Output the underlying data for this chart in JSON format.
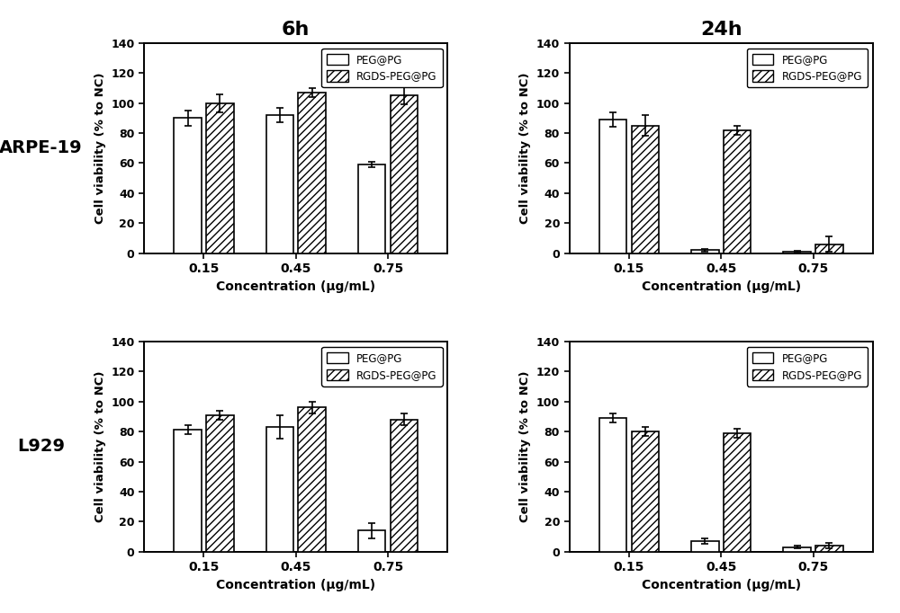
{
  "title_left": "6h",
  "title_right": "24h",
  "row_labels": [
    "ARPE-19",
    "L929"
  ],
  "x_tick_labels": [
    "0.15",
    "0.45",
    "0.75"
  ],
  "xlabel": "Concentration (μg/mL)",
  "ylabel": "Cell viability (% to NC)",
  "ylim": [
    0,
    140
  ],
  "yticks": [
    0,
    20,
    40,
    60,
    80,
    100,
    120,
    140
  ],
  "legend_labels": [
    "PEG@PG",
    "RGDS-PEG@PG"
  ],
  "bar_width": 0.3,
  "bar_gap": 0.05,
  "subplot_data": {
    "ARPE19_6h": {
      "peg": [
        90,
        92,
        59
      ],
      "peg_err": [
        5,
        5,
        2
      ],
      "rgds": [
        100,
        107,
        105
      ],
      "rgds_err": [
        6,
        3,
        6
      ]
    },
    "ARPE19_24h": {
      "peg": [
        89,
        2,
        1
      ],
      "peg_err": [
        5,
        1,
        0.5
      ],
      "rgds": [
        85,
        82,
        6
      ],
      "rgds_err": [
        7,
        3,
        5
      ]
    },
    "L929_6h": {
      "peg": [
        81,
        83,
        14
      ],
      "peg_err": [
        3,
        8,
        5
      ],
      "rgds": [
        91,
        96,
        88
      ],
      "rgds_err": [
        3,
        4,
        4
      ]
    },
    "L929_24h": {
      "peg": [
        89,
        7,
        3
      ],
      "peg_err": [
        3,
        2,
        1
      ],
      "rgds": [
        80,
        79,
        4
      ],
      "rgds_err": [
        3,
        3,
        2
      ]
    }
  },
  "face_color": "#ffffff",
  "bar_color_peg": "#ffffff",
  "bar_color_rgds": "#ffffff",
  "bar_edgecolor": "#000000",
  "hatch_pattern": "////"
}
